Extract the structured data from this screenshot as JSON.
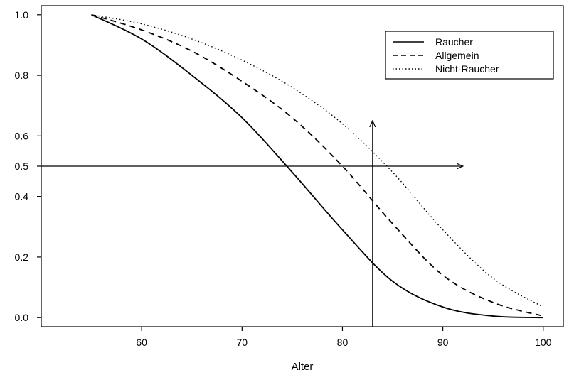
{
  "chart_data": {
    "type": "line",
    "xlabel": "Alter",
    "ylabel": "",
    "xlim": [
      50,
      102
    ],
    "ylim": [
      -0.03,
      1.03
    ],
    "xticks": [
      60,
      70,
      80,
      90,
      100
    ],
    "yticks": [
      0.0,
      0.2,
      0.4,
      0.5,
      0.6,
      0.8,
      1.0
    ],
    "xtick_labels": [
      "60",
      "70",
      "80",
      "90",
      "100"
    ],
    "ytick_labels": [
      "0.0",
      "0.2",
      "0.4",
      "0.5",
      "0.6",
      "0.8",
      "1.0"
    ],
    "grid": false,
    "legend_position": "top-right",
    "x": [
      55,
      60,
      65,
      70,
      75,
      80,
      85,
      90,
      95,
      100
    ],
    "series": [
      {
        "name": "Raucher",
        "line_style": "solid",
        "values": [
          1.0,
          0.92,
          0.8,
          0.66,
          0.48,
          0.29,
          0.12,
          0.035,
          0.005,
          0.0
        ]
      },
      {
        "name": "Allgemein",
        "line_style": "dashed",
        "values": [
          1.0,
          0.95,
          0.88,
          0.78,
          0.66,
          0.5,
          0.31,
          0.14,
          0.05,
          0.005
        ]
      },
      {
        "name": "Nicht-Raucher",
        "line_style": "dotted",
        "values": [
          1.0,
          0.97,
          0.92,
          0.85,
          0.76,
          0.64,
          0.48,
          0.29,
          0.13,
          0.035
        ]
      }
    ],
    "annotations": [
      {
        "type": "arrow",
        "orientation": "horizontal",
        "y": 0.5,
        "x_from": 50,
        "x_to": 92
      },
      {
        "type": "arrow",
        "orientation": "vertical",
        "x": 83,
        "y_from": -0.03,
        "y_to": 0.65
      }
    ]
  }
}
